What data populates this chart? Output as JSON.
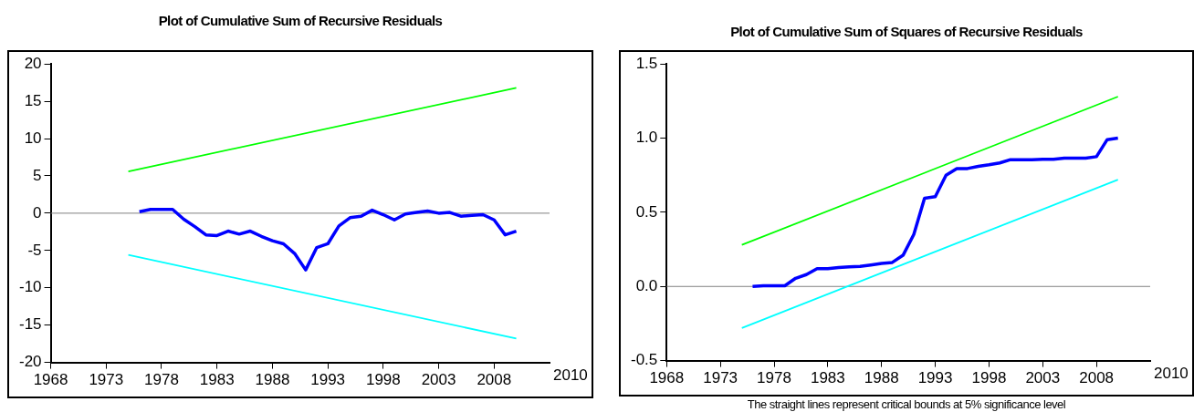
{
  "chart_data": [
    {
      "type": "line",
      "title": "Plot of Cumulative Sum of Recursive Residuals",
      "xlim": [
        1968,
        2013
      ],
      "xticks": [
        1968,
        1973,
        1978,
        1983,
        1988,
        1993,
        1998,
        2003,
        2008
      ],
      "ylim": [
        -20,
        20
      ],
      "xlabel": "2010",
      "yticks": [
        -20,
        -15,
        -10,
        -5,
        0,
        5,
        10,
        15,
        20
      ],
      "grid": false,
      "legend": false,
      "marker": "none",
      "line_style": "solid",
      "ref_lines": [
        {
          "axis": "y",
          "value": 0,
          "color": "#808080"
        }
      ],
      "series": [
        {
          "color": "#0000ff",
          "x": [
            1976,
            1977,
            1978,
            1979,
            1980,
            1981,
            1982,
            1983,
            1984,
            1985,
            1986,
            1987,
            1988,
            1989,
            1990,
            1991,
            1992,
            1993,
            1994,
            1995,
            1996,
            1997,
            1998,
            1999,
            2000,
            2001,
            2002,
            2003,
            2004,
            2005,
            2006,
            2007,
            2008,
            2009,
            2010
          ],
          "values": [
            0.2,
            0.5,
            0.5,
            0.5,
            -0.8,
            -1.8,
            -2.9,
            -3.0,
            -2.4,
            -2.8,
            -2.4,
            -3.1,
            -3.7,
            -4.1,
            -5.4,
            -7.6,
            -4.6,
            -4.1,
            -1.7,
            -0.6,
            -0.4,
            0.4,
            -0.2,
            -0.9,
            -0.1,
            0.1,
            0.3,
            0,
            0.1,
            -0.4,
            -0.3,
            -0.2,
            -0.9,
            -2.9,
            -2.4
          ]
        },
        {
          "color": "#00ff00",
          "x": [
            1975,
            2010
          ],
          "values": [
            5.6,
            16.8
          ]
        },
        {
          "color": "#00ffff",
          "x": [
            1975,
            2010
          ],
          "values": [
            -5.6,
            -16.8
          ]
        }
      ]
    },
    {
      "type": "line",
      "title": "Plot of Cumulative Sum of Squares of Recursive Residuals",
      "xlim": [
        1968,
        2013
      ],
      "xticks": [
        1968,
        1973,
        1978,
        1983,
        1988,
        1993,
        1998,
        2003,
        2008
      ],
      "ylim": [
        -0.5,
        1.5
      ],
      "yticks": [
        -0.5,
        {
          "value": 0,
          "label": "0.0"
        },
        0.5,
        {
          "value": 1,
          "label": "1.0"
        },
        1.5
      ],
      "grid": false,
      "legend": false,
      "marker": "none",
      "line_style": "solid",
      "xlabel": "2010",
      "annotations": [
        "The straight lines represent critical bounds at 5% significance level"
      ],
      "ref_lines": [
        {
          "axis": "y",
          "value": 0,
          "color": "#808080"
        }
      ],
      "series": [
        {
          "color": "#0000ff",
          "x": [
            1976,
            1977,
            1978,
            1979,
            1980,
            1981,
            1982,
            1983,
            1984,
            1985,
            1986,
            1987,
            1988,
            1989,
            1990,
            1991,
            1992,
            1993,
            1994,
            1995,
            1996,
            1997,
            1998,
            1999,
            2000,
            2001,
            2002,
            2003,
            2004,
            2005,
            2006,
            2007,
            2008,
            2009,
            2010
          ],
          "values": [
            0,
            0.005,
            0.005,
            0.005,
            0.055,
            0.08,
            0.12,
            0.12,
            0.127,
            0.132,
            0.135,
            0.145,
            0.155,
            0.162,
            0.21,
            0.35,
            0.595,
            0.605,
            0.75,
            0.795,
            0.795,
            0.81,
            0.82,
            0.833,
            0.855,
            0.855,
            0.855,
            0.857,
            0.857,
            0.865,
            0.865,
            0.865,
            0.875,
            0.99,
            1.0
          ]
        },
        {
          "color": "#00ff00",
          "x": [
            1975,
            2010
          ],
          "values": [
            0.28,
            1.28
          ]
        },
        {
          "color": "#00ffff",
          "x": [
            1975,
            2010
          ],
          "values": [
            -0.28,
            0.72
          ]
        }
      ]
    }
  ]
}
